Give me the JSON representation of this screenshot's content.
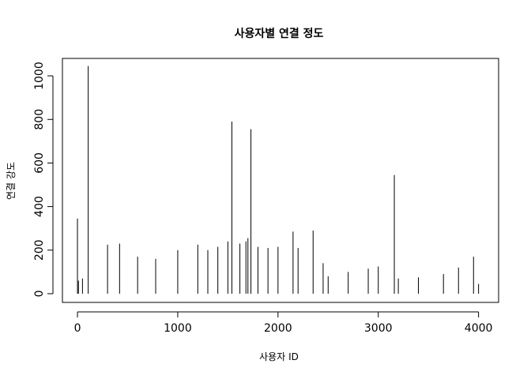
{
  "chart_data": {
    "type": "bar",
    "title": "사용자별 연결 정도",
    "xlabel": "사용자 ID",
    "ylabel": "연결 강도",
    "xlim": [
      -150,
      4200
    ],
    "ylim": [
      -40,
      1080
    ],
    "x_ticks": [
      {
        "value": 0,
        "label": "0"
      },
      {
        "value": 1000,
        "label": "1000"
      },
      {
        "value": 2000,
        "label": "2000"
      },
      {
        "value": 3000,
        "label": "3000"
      },
      {
        "value": 4000,
        "label": "4000"
      }
    ],
    "y_ticks": [
      {
        "value": 0,
        "label": "0"
      },
      {
        "value": 200,
        "label": "200"
      },
      {
        "value": 400,
        "label": "400"
      },
      {
        "value": 600,
        "label": "600"
      },
      {
        "value": 800,
        "label": "800"
      },
      {
        "value": 1000,
        "label": "1000"
      }
    ],
    "grid": false,
    "legend": "none",
    "bar_color": "#000000",
    "x": [
      0,
      10,
      50,
      107,
      300,
      420,
      600,
      780,
      1000,
      1200,
      1300,
      1400,
      1500,
      1540,
      1620,
      1680,
      1700,
      1730,
      1800,
      1900,
      2000,
      2150,
      2200,
      2350,
      2450,
      2500,
      2700,
      2900,
      3000,
      3160,
      3200,
      3400,
      3650,
      3800,
      3950,
      4000
    ],
    "values": [
      345,
      60,
      70,
      1045,
      225,
      230,
      170,
      160,
      200,
      225,
      200,
      215,
      240,
      790,
      230,
      240,
      255,
      755,
      215,
      210,
      215,
      285,
      210,
      290,
      140,
      80,
      100,
      115,
      125,
      545,
      70,
      75,
      90,
      120,
      170,
      45
    ]
  }
}
